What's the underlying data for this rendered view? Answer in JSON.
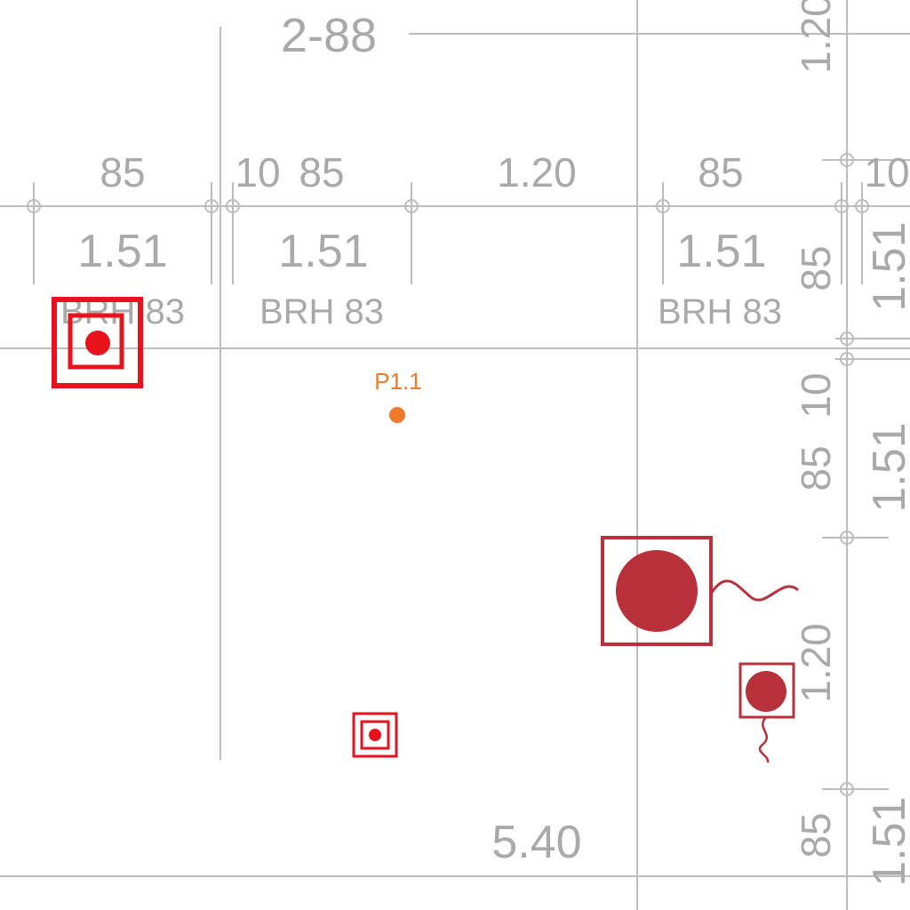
{
  "plan_title": "2-88",
  "window_labels": {
    "brh_1": "BRH 83",
    "brh_2": "BRH 83",
    "brh_3": "BRH 83"
  },
  "horizontal_dims_top": {
    "d1": "85",
    "d2": "10",
    "d3": "85",
    "d4": "1.20",
    "d5": "85",
    "d6": "10"
  },
  "horizontal_dims_bottom": {
    "d1": "1.51",
    "d2": "1.51",
    "d3": "1.51"
  },
  "bottom_dim": "5.40",
  "right_top_dim": "1.20",
  "right_col_a": {
    "d1": "85",
    "d2": "10",
    "d3": "85",
    "d4": "1.20",
    "d5": "85"
  },
  "right_col_b": {
    "d1": "1.51",
    "d2": "1.51",
    "d3": "1.51"
  },
  "point_label": "P1.1",
  "colors": {
    "dimension_text": "#a9a9a9",
    "grid_line": "#bdbdbd",
    "outlet_red": "#e8121c",
    "fixture_dark_red": "#b8313a",
    "point_orange": "#f07a2b"
  },
  "symbols": [
    "double-square-outlet-icon",
    "ceiling-light-icon",
    "wall-light-icon",
    "small-outlet-icon",
    "survey-point-icon"
  ]
}
